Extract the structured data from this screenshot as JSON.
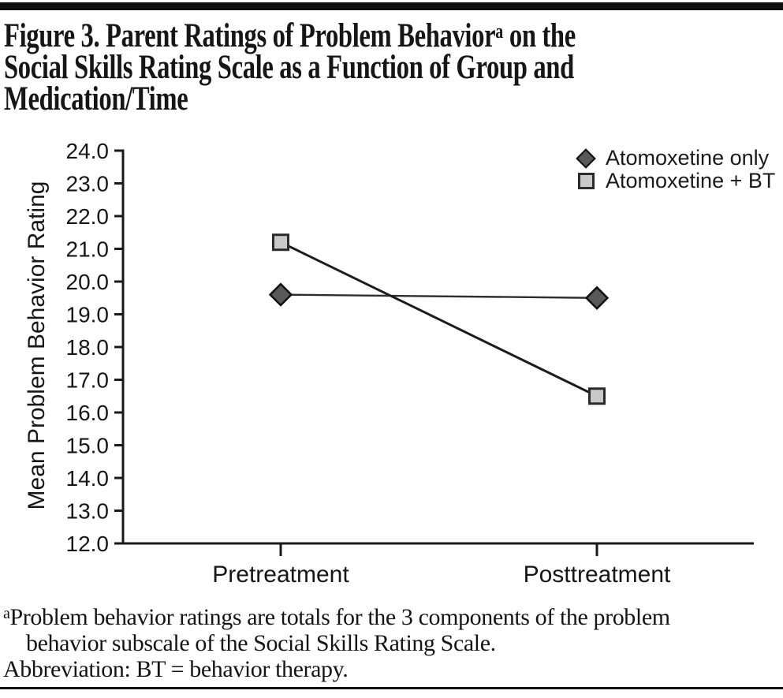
{
  "figure": {
    "title_line1_pre": "Figure 3. Parent Ratings of Problem Behavior",
    "title_sup": "a",
    "title_line1_post": " on the",
    "title_line2": "Social Skills Rating Scale as a Function of Group and",
    "title_line3": "Medication/Time"
  },
  "chart_data": {
    "type": "line",
    "categories": [
      "Pretreatment",
      "Posttreatment"
    ],
    "series": [
      {
        "name": "Atomoxetine only",
        "values": [
          19.6,
          19.5
        ],
        "marker": "diamond",
        "marker_fill": "#595959",
        "marker_stroke": "#101010",
        "line_color": "#2e2e2e",
        "line_width": 2.4
      },
      {
        "name": "Atomoxetine + BT",
        "values": [
          21.2,
          16.5
        ],
        "marker": "square",
        "marker_fill": "#c9c9c9",
        "marker_stroke": "#2b2b2b",
        "line_color": "#1c1c1c",
        "line_width": 3
      }
    ],
    "xlabel": "",
    "ylabel": "Mean Problem Behavior Rating",
    "ylim": [
      12.0,
      24.0
    ],
    "ytick_step": 1.0,
    "yticks": [
      "24.0",
      "23.0",
      "22.0",
      "21.0",
      "20.0",
      "19.0",
      "18.0",
      "17.0",
      "16.0",
      "15.0",
      "14.0",
      "13.0",
      "12.0"
    ],
    "grid": false,
    "legend_position": "top-right"
  },
  "footnote": {
    "sup": "a",
    "line1": "Problem behavior ratings are totals for the 3 components of the problem",
    "line2": "behavior subscale of the Social Skills Rating Scale.",
    "abbreviation": "Abbreviation: BT = behavior therapy."
  },
  "colors": {
    "rule": "#101010",
    "axis": "#1a1a1a",
    "text": "#161616"
  }
}
